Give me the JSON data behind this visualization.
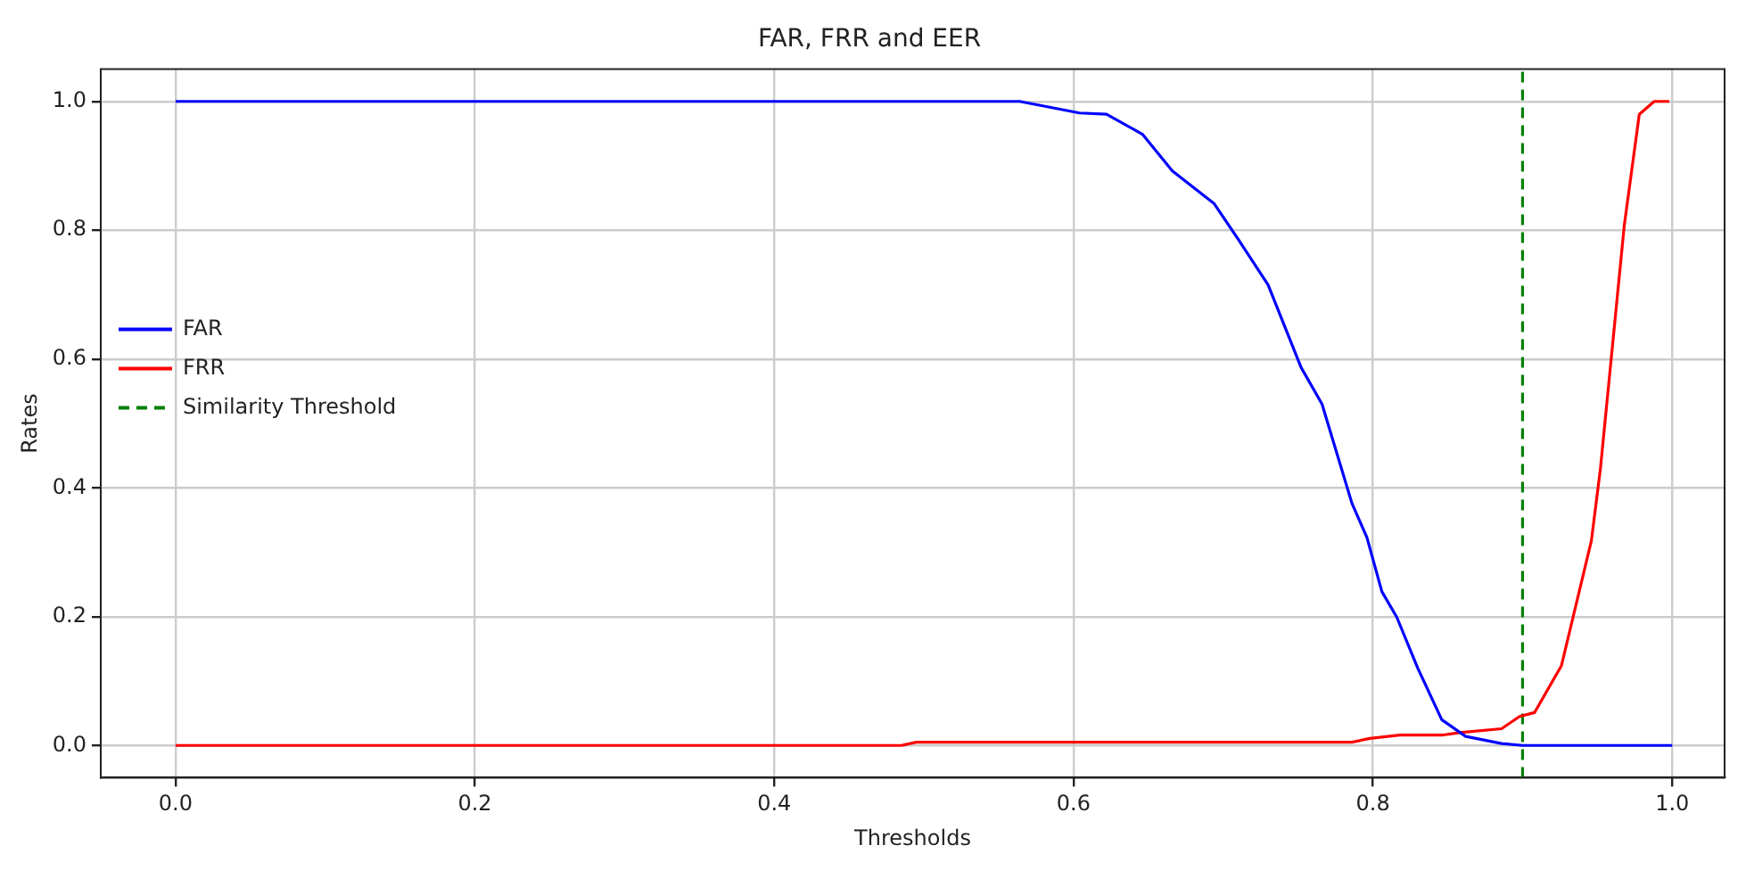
{
  "chart_data": {
    "type": "line",
    "title": "FAR, FRR and EER",
    "xlabel": "Thresholds",
    "ylabel": "Rates",
    "xlim": [
      -0.05,
      1.035
    ],
    "ylim": [
      -0.05,
      1.05
    ],
    "xticks": [
      {
        "value": 0,
        "label": "0.0"
      },
      0.2,
      0.4,
      0.6,
      0.8,
      {
        "value": 1,
        "label": "1.0"
      }
    ],
    "yticks": [
      {
        "value": 0,
        "label": "0.0"
      },
      0.2,
      0.4,
      0.6,
      0.8,
      {
        "value": 1,
        "label": "1.0"
      }
    ],
    "series": [
      {
        "name": "FAR",
        "color": "#0000ff",
        "x": [
          0,
          0.2,
          0.4,
          0.564,
          0.604,
          0.622,
          0.646,
          0.666,
          0.694,
          0.71,
          0.73,
          0.752,
          0.766,
          0.786,
          0.796,
          0.806,
          0.816,
          0.83,
          0.846,
          0.862,
          0.886,
          0.9,
          1.0
        ],
        "values": [
          1.0,
          1.0,
          1.0,
          1.0,
          0.982,
          0.98,
          0.949,
          0.892,
          0.841,
          0.786,
          0.715,
          0.587,
          0.53,
          0.376,
          0.323,
          0.239,
          0.199,
          0.12,
          0.04,
          0.014,
          0.003,
          0,
          0
        ]
      },
      {
        "name": "FRR",
        "color": "#ff0000",
        "x": [
          0,
          0.2,
          0.4,
          0.485,
          0.495,
          0.6,
          0.786,
          0.798,
          0.818,
          0.846,
          0.858,
          0.886,
          0.898,
          0.908,
          0.926,
          0.946,
          0.952,
          0.968,
          0.978,
          0.988,
          0.998
        ],
        "values": [
          0,
          0,
          0,
          0,
          0.005,
          0.005,
          0.005,
          0.011,
          0.016,
          0.016,
          0.02,
          0.026,
          0.045,
          0.051,
          0.124,
          0.318,
          0.429,
          0.808,
          0.98,
          1.0,
          1.0
        ]
      },
      {
        "name": "Similarity Threshold",
        "color": "#008000",
        "line_style": "dashed",
        "x": [
          0.9,
          0.9
        ],
        "values": [
          -0.05,
          1.05
        ]
      }
    ],
    "grid": true,
    "legend": "center left",
    "marker": "none",
    "line_style": "solid"
  }
}
